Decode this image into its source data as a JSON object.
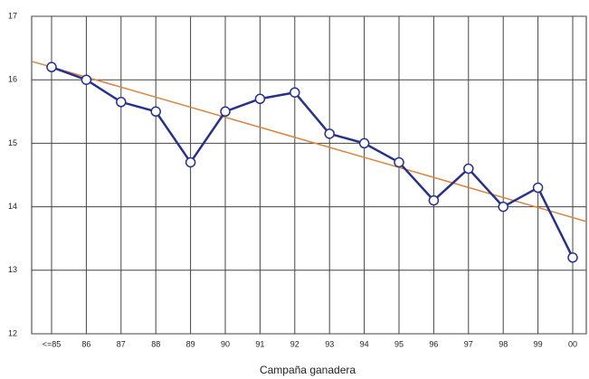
{
  "chart_data": {
    "type": "line",
    "x_label": "Campaña ganadera",
    "categories": [
      "<=85",
      "86",
      "87",
      "88",
      "89",
      "90",
      "91",
      "92",
      "93",
      "94",
      "95",
      "96",
      "97",
      "98",
      "99",
      "00"
    ],
    "series": [
      {
        "color": "#27318a",
        "values": [
          16.2,
          16.0,
          15.65,
          15.5,
          14.7,
          15.5,
          15.7,
          15.8,
          15.15,
          15.0,
          14.7,
          14.1,
          14.6,
          14.0,
          14.3,
          13.2
        ]
      }
    ],
    "trend": {
      "color": "#d9843f",
      "values": [
        16.2,
        13.83
      ]
    },
    "ylim": [
      12,
      17
    ],
    "yticks": [
      12,
      13,
      14,
      15,
      16,
      17
    ],
    "grid": true
  }
}
